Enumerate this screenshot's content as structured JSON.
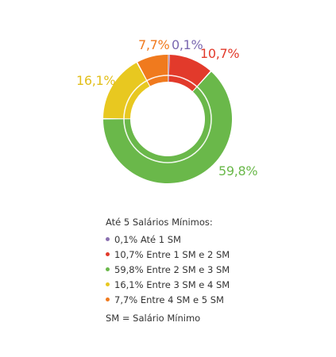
{
  "chart_data": {
    "type": "donut",
    "slices": [
      {
        "label": "0,1%",
        "value": 0.1,
        "color": "#8a6fb0",
        "legend": "0,1% Até 1 SM"
      },
      {
        "label": "10,7%",
        "value": 10.7,
        "color": "#e23a2b",
        "legend": "10,7% Entre 1 SM e 2 SM"
      },
      {
        "label": "59,8%",
        "value": 59.8,
        "color": "#6ab84a",
        "legend": "59,8% Entre 2 SM e 3 SM"
      },
      {
        "label": "16,1%",
        "value": 16.1,
        "color": "#e8c820",
        "legend": "16,1% Entre 3 SM e 4 SM"
      },
      {
        "label": "7,7%",
        "value": 7.7,
        "color": "#f07a1e",
        "legend": "7,7% Entre 4 SM e 5 SM"
      }
    ],
    "legend_title": "Até 5 Salários Mínimos:",
    "footnote": "SM = Salário Mínimo"
  }
}
